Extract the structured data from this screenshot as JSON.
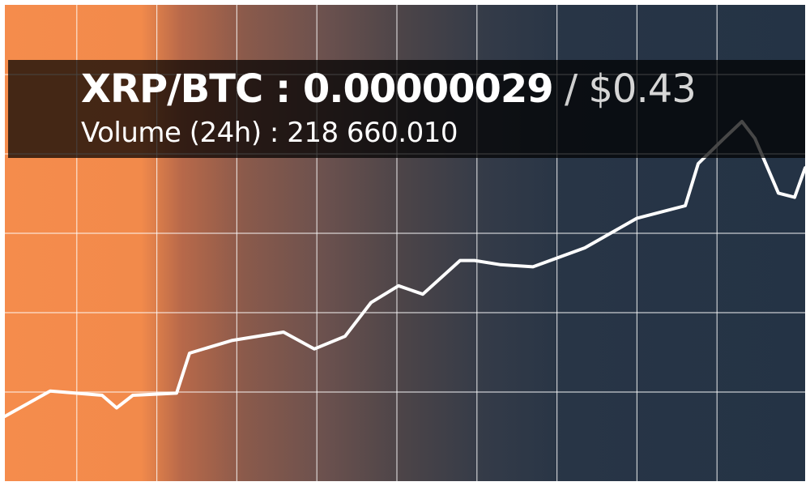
{
  "ticker": {
    "pair": "XRP/BTC",
    "separator": " : ",
    "price_btc": "0.00000029",
    "slash": " / ",
    "price_usd": "$0.43",
    "volume_label": "Volume (24h)",
    "volume_separator": " : ",
    "volume_value": "218 660.010"
  },
  "colors": {
    "gradient_start": "#f58c4c",
    "gradient_end": "#243345",
    "line": "#ffffff",
    "grid": "#ffffff"
  },
  "chart_data": {
    "type": "line",
    "grid": true,
    "series": [
      {
        "values": [
          1.0,
          1.6,
          1.5,
          1.2,
          1.5,
          1.55,
          2.5,
          2.8,
          3.0,
          2.6,
          2.9,
          3.7,
          4.1,
          3.9,
          4.7,
          4.7,
          4.6,
          4.55,
          5.0,
          5.7,
          6.0,
          7.0,
          7.6,
          8.0,
          7.6,
          6.3,
          6.2,
          6.9
        ]
      }
    ],
    "ylim": [
      0,
      10
    ]
  }
}
